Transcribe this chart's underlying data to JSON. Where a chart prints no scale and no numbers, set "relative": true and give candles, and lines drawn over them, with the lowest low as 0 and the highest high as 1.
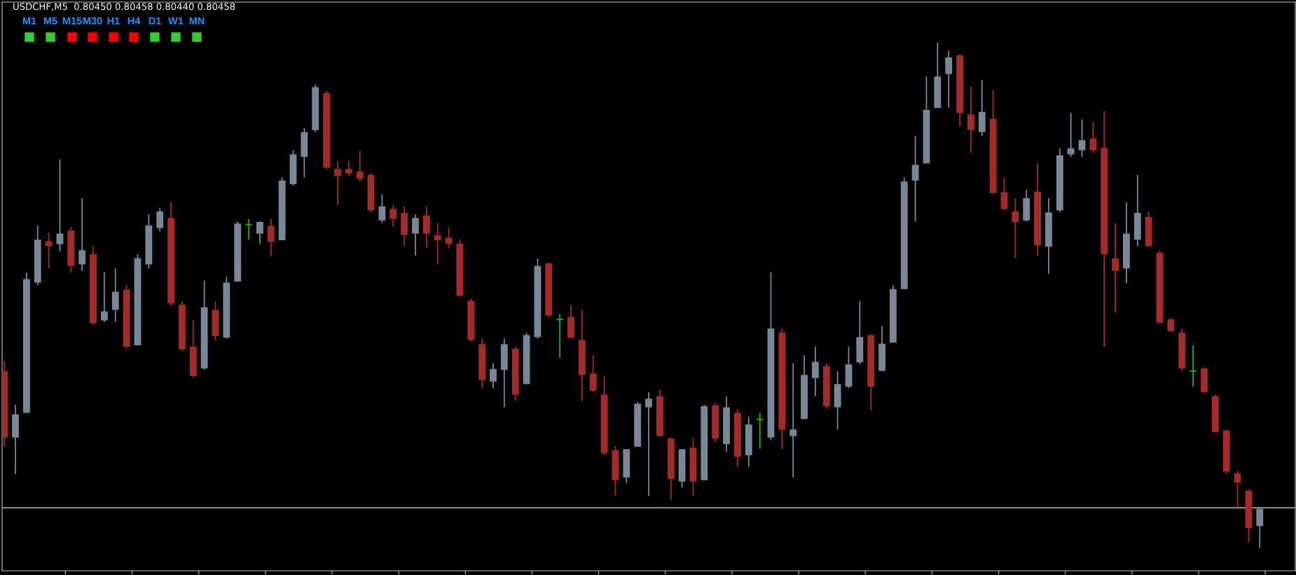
{
  "chart_data": [
    {
      "type": "candlestick",
      "title": "USDCHF,M5  0.80450 0.80458 0.80440 0.80458",
      "relative": true,
      "grid": false,
      "legend": false,
      "categories": [
        null,
        null,
        null,
        null,
        null,
        null,
        null,
        null,
        null,
        null,
        null,
        null,
        null,
        null,
        null,
        null,
        null,
        null,
        null,
        null,
        null,
        null,
        null,
        null,
        null,
        null,
        null,
        null,
        null,
        null,
        null,
        null,
        null,
        null,
        null,
        null,
        null,
        null,
        null,
        null,
        null,
        null,
        null,
        null,
        null,
        null,
        null,
        null,
        null,
        null,
        null,
        null,
        null,
        null,
        null,
        null,
        null,
        null,
        null,
        null,
        null,
        null,
        null,
        null,
        null,
        null,
        null,
        null,
        null,
        null,
        null,
        null,
        null,
        null,
        null,
        null,
        null,
        null,
        null,
        null,
        null,
        null,
        null,
        null,
        null,
        null,
        null,
        null,
        null,
        null,
        null,
        null,
        null,
        null,
        null,
        null,
        null,
        null,
        null,
        null,
        null,
        null,
        null,
        null,
        null,
        null,
        null,
        null,
        null,
        null,
        null,
        null,
        null,
        null
      ],
      "ohlc": [
        [
          0.35,
          0.37,
          0.201,
          0.218
        ],
        [
          0.218,
          0.283,
          0.146,
          0.264
        ],
        [
          0.267,
          0.545,
          0.267,
          0.532
        ],
        [
          0.525,
          0.638,
          0.52,
          0.61
        ],
        [
          0.607,
          0.624,
          0.553,
          0.597
        ],
        [
          0.601,
          0.769,
          0.586,
          0.622
        ],
        [
          0.628,
          0.635,
          0.545,
          0.558
        ],
        [
          0.561,
          0.692,
          0.548,
          0.589
        ],
        [
          0.581,
          0.597,
          0.442,
          0.445
        ],
        [
          0.45,
          0.545,
          0.447,
          0.468
        ],
        [
          0.471,
          0.553,
          0.447,
          0.507
        ],
        [
          0.511,
          0.52,
          0.394,
          0.398
        ],
        [
          0.401,
          0.581,
          0.401,
          0.573
        ],
        [
          0.561,
          0.66,
          0.553,
          0.638
        ],
        [
          0.633,
          0.673,
          0.627,
          0.666
        ],
        [
          0.653,
          0.684,
          0.48,
          0.484
        ],
        [
          0.481,
          0.488,
          0.39,
          0.393
        ],
        [
          0.398,
          0.45,
          0.337,
          0.34
        ],
        [
          0.355,
          0.529,
          0.352,
          0.476
        ],
        [
          0.471,
          0.488,
          0.411,
          0.419
        ],
        [
          0.416,
          0.537,
          0.414,
          0.525
        ],
        [
          0.527,
          0.646,
          0.527,
          0.642
        ],
        [
          0.64,
          0.651,
          0.61,
          0.64
        ],
        [
          0.622,
          0.646,
          0.602,
          0.645
        ],
        [
          0.637,
          0.651,
          0.578,
          0.606
        ],
        [
          0.609,
          0.733,
          0.609,
          0.727
        ],
        [
          0.72,
          0.787,
          0.717,
          0.779
        ],
        [
          0.774,
          0.831,
          0.733,
          0.823
        ],
        [
          0.827,
          0.917,
          0.823,
          0.912
        ],
        [
          0.9,
          0.905,
          0.75,
          0.753
        ],
        [
          0.75,
          0.766,
          0.679,
          0.736
        ],
        [
          0.75,
          0.766,
          0.736,
          0.741
        ],
        [
          0.745,
          0.786,
          0.725,
          0.73
        ],
        [
          0.738,
          0.741,
          0.664,
          0.668
        ],
        [
          0.648,
          0.7,
          0.643,
          0.676
        ],
        [
          0.671,
          0.679,
          0.635,
          0.651
        ],
        [
          0.663,
          0.676,
          0.597,
          0.619
        ],
        [
          0.622,
          0.66,
          0.578,
          0.653
        ],
        [
          0.658,
          0.676,
          0.594,
          0.622
        ],
        [
          0.619,
          0.643,
          0.561,
          0.609
        ],
        [
          0.614,
          0.635,
          0.594,
          0.602
        ],
        [
          0.602,
          0.61,
          0.496,
          0.499
        ],
        [
          0.489,
          0.493,
          0.408,
          0.411
        ],
        [
          0.403,
          0.414,
          0.316,
          0.332
        ],
        [
          0.329,
          0.365,
          0.316,
          0.354
        ],
        [
          0.352,
          0.414,
          0.278,
          0.403
        ],
        [
          0.394,
          0.398,
          0.291,
          0.303
        ],
        [
          0.324,
          0.426,
          0.324,
          0.421
        ],
        [
          0.417,
          0.573,
          0.414,
          0.558
        ],
        [
          0.563,
          0.565,
          0.455,
          0.46
        ],
        [
          0.452,
          0.463,
          0.376,
          0.452
        ],
        [
          0.457,
          0.48,
          0.414,
          0.416
        ],
        [
          0.411,
          0.471,
          0.29,
          0.342
        ],
        [
          0.345,
          0.381,
          0.308,
          0.311
        ],
        [
          0.303,
          0.34,
          0.183,
          0.187
        ],
        [
          0.193,
          0.201,
          0.103,
          0.134
        ],
        [
          0.139,
          0.195,
          0.128,
          0.195
        ],
        [
          0.2,
          0.288,
          0.2,
          0.285
        ],
        [
          0.278,
          0.308,
          0.103,
          0.295
        ],
        [
          0.3,
          0.313,
          0.221,
          0.221
        ],
        [
          0.216,
          0.218,
          0.095,
          0.136
        ],
        [
          0.131,
          0.195,
          0.119,
          0.195
        ],
        [
          0.198,
          0.218,
          0.103,
          0.131
        ],
        [
          0.134,
          0.283,
          0.133,
          0.28
        ],
        [
          0.282,
          0.286,
          0.209,
          0.216
        ],
        [
          0.205,
          0.3,
          0.19,
          0.278
        ],
        [
          0.267,
          0.275,
          0.16,
          0.18
        ],
        [
          0.183,
          0.259,
          0.16,
          0.244
        ],
        [
          0.254,
          0.267,
          0.196,
          0.254
        ],
        [
          0.218,
          0.545,
          0.213,
          0.434
        ],
        [
          0.426,
          0.434,
          0.196,
          0.234
        ],
        [
          0.221,
          0.365,
          0.139,
          0.234
        ],
        [
          0.255,
          0.381,
          0.254,
          0.342
        ],
        [
          0.336,
          0.398,
          0.3,
          0.368
        ],
        [
          0.36,
          0.365,
          0.275,
          0.28
        ],
        [
          0.278,
          0.349,
          0.234,
          0.324
        ],
        [
          0.319,
          0.398,
          0.316,
          0.363
        ],
        [
          0.367,
          0.488,
          0.363,
          0.417
        ],
        [
          0.421,
          0.422,
          0.272,
          0.319
        ],
        [
          0.35,
          0.439,
          0.35,
          0.404
        ],
        [
          0.406,
          0.52,
          0.406,
          0.512
        ],
        [
          0.512,
          0.733,
          0.512,
          0.725
        ],
        [
          0.727,
          0.815,
          0.646,
          0.758
        ],
        [
          0.761,
          0.933,
          0.761,
          0.867
        ],
        [
          0.871,
          1.0,
          0.871,
          0.933
        ],
        [
          0.938,
          0.984,
          0.872,
          0.971
        ],
        [
          0.975,
          0.977,
          0.835,
          0.861
        ],
        [
          0.858,
          0.913,
          0.782,
          0.827
        ],
        [
          0.823,
          0.926,
          0.815,
          0.863
        ],
        [
          0.849,
          0.905,
          0.702,
          0.702
        ],
        [
          0.704,
          0.733,
          0.668,
          0.671
        ],
        [
          0.666,
          0.692,
          0.573,
          0.645
        ],
        [
          0.648,
          0.709,
          0.646,
          0.692
        ],
        [
          0.705,
          0.761,
          0.578,
          0.599
        ],
        [
          0.596,
          0.692,
          0.542,
          0.664
        ],
        [
          0.668,
          0.791,
          0.664,
          0.777
        ],
        [
          0.779,
          0.861,
          0.774,
          0.791
        ],
        [
          0.787,
          0.848,
          0.774,
          0.807
        ],
        [
          0.81,
          0.843,
          0.782,
          0.787
        ],
        [
          0.792,
          0.864,
          0.398,
          0.581
        ],
        [
          0.573,
          0.643,
          0.466,
          0.548
        ],
        [
          0.553,
          0.684,
          0.524,
          0.622
        ],
        [
          0.61,
          0.738,
          0.597,
          0.663
        ],
        [
          0.655,
          0.666,
          0.597,
          0.597
        ],
        [
          0.584,
          0.589,
          0.445,
          0.445
        ],
        [
          0.452,
          0.455,
          0.427,
          0.429
        ],
        [
          0.426,
          0.434,
          0.349,
          0.355
        ],
        [
          0.35,
          0.401,
          0.319,
          0.35
        ],
        [
          0.355,
          0.357,
          0.306,
          0.308
        ],
        [
          0.3,
          0.303,
          0.229,
          0.229
        ],
        [
          0.232,
          0.234,
          0.147,
          0.151
        ],
        [
          0.147,
          0.152,
          0.079,
          0.129
        ],
        [
          0.113,
          0.115,
          0.01,
          0.039
        ],
        [
          0.043,
          0.079,
          0.0,
          0.077
        ]
      ],
      "colors": [
        "#a52a2a",
        "#778899",
        "#778899",
        "#778899",
        "#a52a2a",
        "#778899",
        "#a52a2a",
        "#778899",
        "#a52a2a",
        "#778899",
        "#778899",
        "#a52a2a",
        "#778899",
        "#778899",
        "#778899",
        "#a52a2a",
        "#a52a2a",
        "#a52a2a",
        "#778899",
        "#a52a2a",
        "#778899",
        "#778899",
        "#00c000",
        "#778899",
        "#a52a2a",
        "#778899",
        "#778899",
        "#778899",
        "#778899",
        "#a52a2a",
        "#a52a2a",
        "#a52a2a",
        "#a52a2a",
        "#a52a2a",
        "#778899",
        "#a52a2a",
        "#a52a2a",
        "#778899",
        "#a52a2a",
        "#a52a2a",
        "#a52a2a",
        "#a52a2a",
        "#a52a2a",
        "#a52a2a",
        "#778899",
        "#778899",
        "#a52a2a",
        "#778899",
        "#778899",
        "#a52a2a",
        "#00c000",
        "#a52a2a",
        "#a52a2a",
        "#a52a2a",
        "#a52a2a",
        "#a52a2a",
        "#778899",
        "#778899",
        "#778899",
        "#a52a2a",
        "#a52a2a",
        "#778899",
        "#a52a2a",
        "#778899",
        "#a52a2a",
        "#778899",
        "#a52a2a",
        "#778899",
        "#00c000",
        "#778899",
        "#a52a2a",
        "#778899",
        "#778899",
        "#778899",
        "#a52a2a",
        "#778899",
        "#778899",
        "#778899",
        "#a52a2a",
        "#778899",
        "#778899",
        "#778899",
        "#778899",
        "#778899",
        "#778899",
        "#778899",
        "#a52a2a",
        "#a52a2a",
        "#778899",
        "#a52a2a",
        "#a52a2a",
        "#a52a2a",
        "#778899",
        "#a52a2a",
        "#778899",
        "#778899",
        "#778899",
        "#778899",
        "#a52a2a",
        "#a52a2a",
        "#a52a2a",
        "#778899",
        "#778899",
        "#a52a2a",
        "#a52a2a",
        "#a52a2a",
        "#a52a2a",
        "#00c000",
        "#a52a2a",
        "#a52a2a",
        "#a52a2a",
        "#a52a2a",
        "#a52a2a",
        "#778899"
      ],
      "ref_lines": [
        {
          "axis": "y",
          "value": 0.079,
          "color": "#c0c0c0",
          "line_style": "solid"
        }
      ]
    },
    {
      "type": "other",
      "categories": [
        "M1",
        "M5",
        "M15",
        "M30",
        "H1",
        "H4",
        "D1",
        "W1",
        "MN"
      ],
      "colors": [
        "#32cd32",
        "#32cd32",
        "#ff0000",
        "#ff0000",
        "#ff0000",
        "#ff0000",
        "#32cd32",
        "#32cd32",
        "#32cd32"
      ]
    }
  ]
}
